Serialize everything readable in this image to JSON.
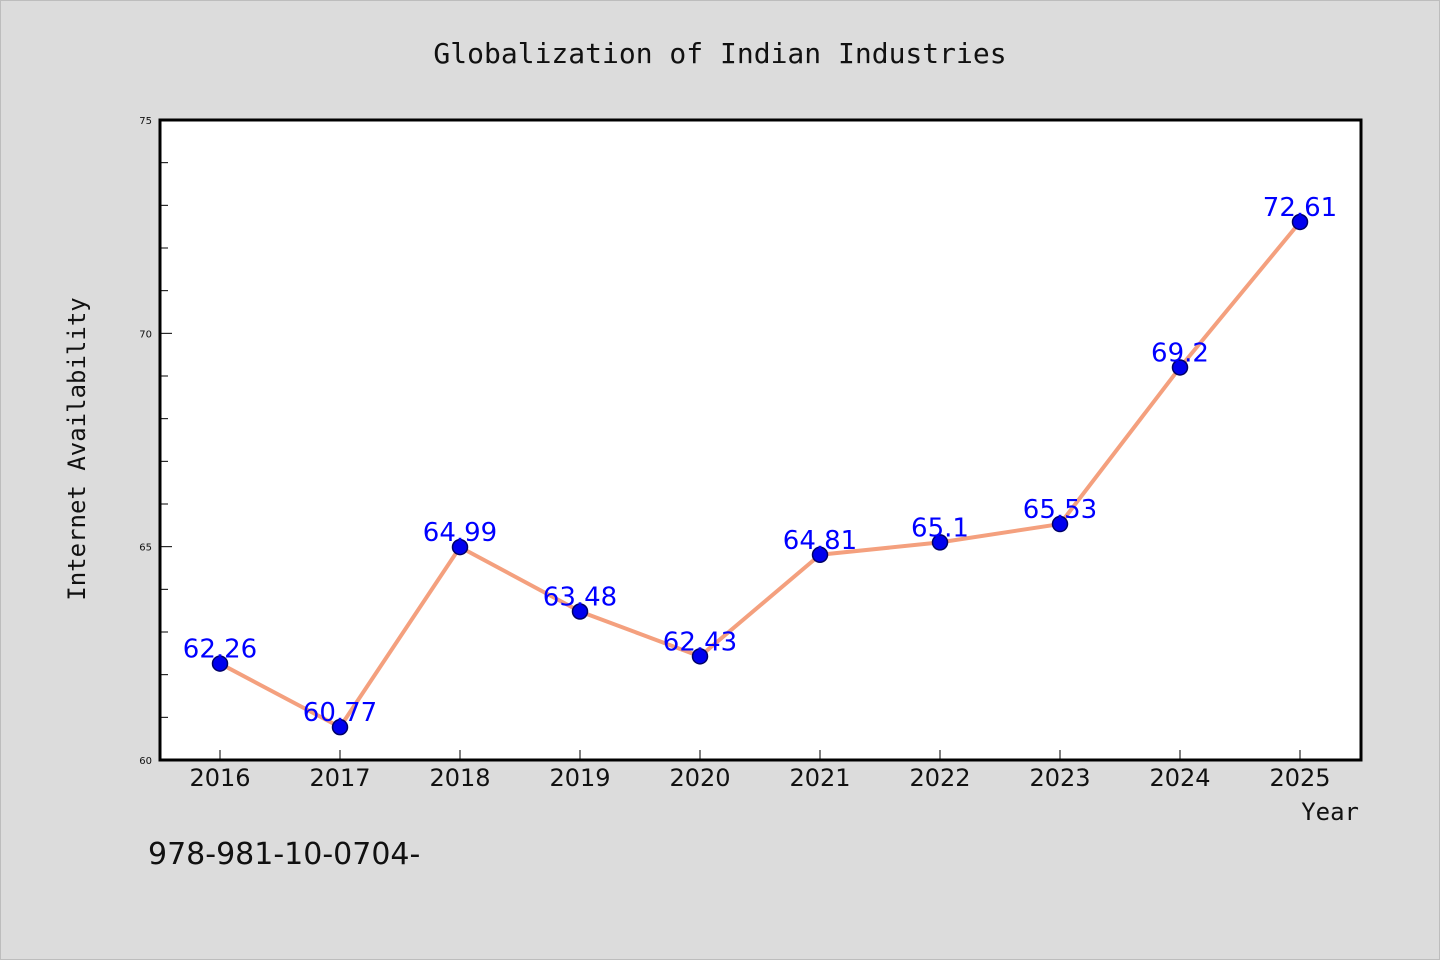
{
  "colors": {
    "background": "#dcdcdc",
    "plot_background": "#ffffff",
    "line": "#f4a07e",
    "marker": "#0000ee",
    "marker_edge": "#000066",
    "data_label": "#0000ff"
  },
  "footer": {
    "text": "978-981-10-0704-"
  },
  "chart_data": {
    "type": "line",
    "title": "Globalization of Indian Industries",
    "xlabel": "Year",
    "ylabel": "Internet Availability",
    "categories": [
      "2016",
      "2017",
      "2018",
      "2019",
      "2020",
      "2021",
      "2022",
      "2023",
      "2024",
      "2025"
    ],
    "series": [
      {
        "values": [
          62.26,
          60.77,
          64.99,
          63.48,
          62.43,
          64.81,
          65.1,
          65.53,
          69.2,
          72.61
        ]
      }
    ],
    "data_labels": [
      "62.26",
      "60.77",
      "64.99",
      "63.48",
      "62.43",
      "64.81",
      "65.1",
      "65.53",
      "69.2",
      "72.61"
    ],
    "ylim": [
      60,
      75
    ],
    "yticks": [
      "60",
      "65",
      "70",
      "75"
    ],
    "grid": false,
    "legend": "none"
  }
}
